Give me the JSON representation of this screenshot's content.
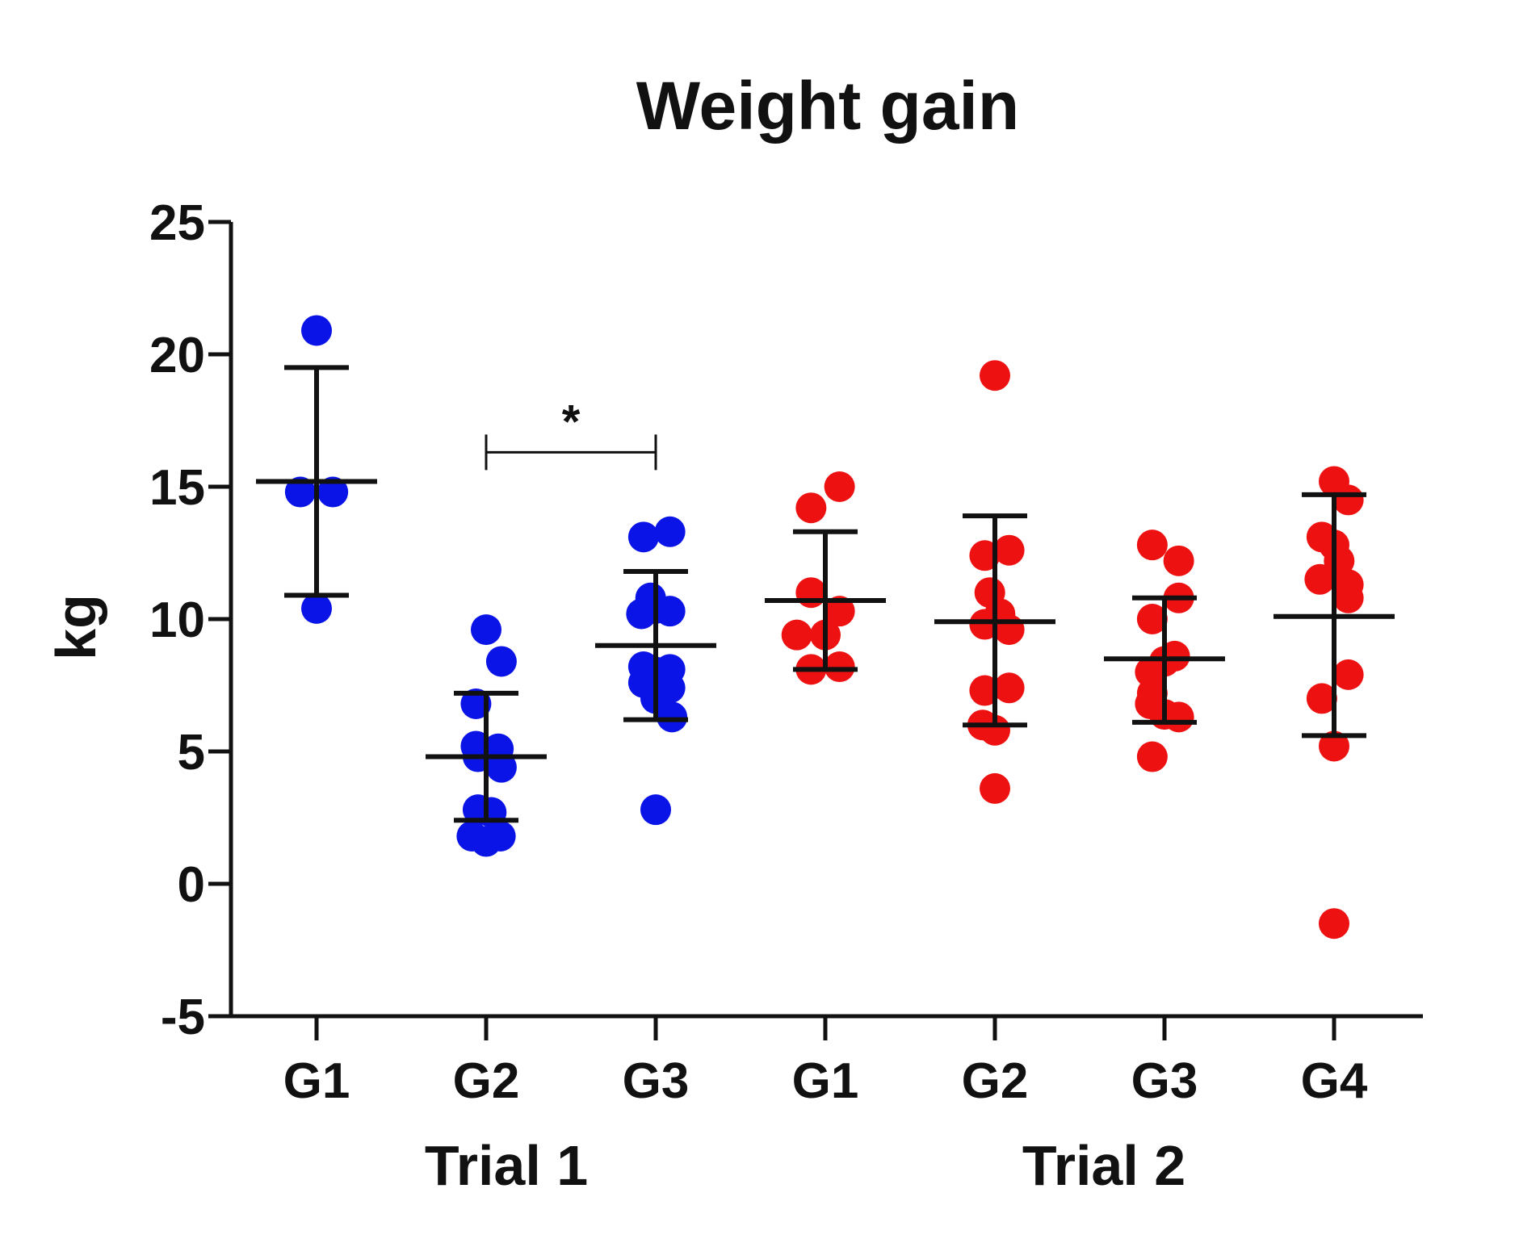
{
  "chart_data": {
    "type": "scatter",
    "title": "Weight gain",
    "ylabel": "kg",
    "xlabel": "",
    "ylim": [
      -5,
      25
    ],
    "yticks": [
      -5,
      0,
      5,
      10,
      15,
      20,
      25
    ],
    "grid": false,
    "legend": "none",
    "group_labels": [
      "Trial 1",
      "Trial 2"
    ],
    "categories": [
      "G1",
      "G2",
      "G3",
      "G1",
      "G2",
      "G3",
      "G4"
    ],
    "significance": {
      "from": 1,
      "to": 2,
      "label": "*",
      "y": 16.3
    },
    "series": [
      {
        "group": "Trial 1",
        "label": "G1",
        "color": "#0a14e6",
        "mean": 15.2,
        "sd_low": 10.9,
        "sd_high": 19.5,
        "points": [
          [
            0.0,
            20.9
          ],
          [
            -0.16,
            14.8
          ],
          [
            0.16,
            14.8
          ],
          [
            0.0,
            10.4
          ]
        ]
      },
      {
        "group": "Trial 1",
        "label": "G2",
        "color": "#0a14e6",
        "mean": 4.8,
        "sd_low": 2.4,
        "sd_high": 7.2,
        "points": [
          [
            0.0,
            9.6
          ],
          [
            0.15,
            8.4
          ],
          [
            -0.1,
            6.8
          ],
          [
            -0.1,
            5.2
          ],
          [
            0.12,
            5.1
          ],
          [
            -0.08,
            4.8
          ],
          [
            0.15,
            4.4
          ],
          [
            -0.08,
            2.8
          ],
          [
            0.05,
            2.7
          ],
          [
            -0.14,
            1.8
          ],
          [
            0.14,
            1.8
          ],
          [
            0.0,
            1.6
          ]
        ]
      },
      {
        "group": "Trial 1",
        "label": "G3",
        "color": "#0a14e6",
        "mean": 9.0,
        "sd_low": 6.2,
        "sd_high": 11.8,
        "points": [
          [
            -0.12,
            13.1
          ],
          [
            0.14,
            13.3
          ],
          [
            -0.05,
            10.8
          ],
          [
            -0.14,
            10.2
          ],
          [
            0.0,
            10.4
          ],
          [
            0.14,
            10.3
          ],
          [
            -0.12,
            8.2
          ],
          [
            0.0,
            8.0
          ],
          [
            0.14,
            8.1
          ],
          [
            -0.12,
            7.6
          ],
          [
            0.14,
            7.4
          ],
          [
            0.0,
            7.0
          ],
          [
            0.16,
            6.3
          ],
          [
            0.0,
            2.8
          ]
        ]
      },
      {
        "group": "Trial 2",
        "label": "G1",
        "color": "#ee1111",
        "mean": 10.7,
        "sd_low": 8.1,
        "sd_high": 13.3,
        "points": [
          [
            -0.14,
            14.2
          ],
          [
            0.14,
            15.0
          ],
          [
            -0.14,
            11.0
          ],
          [
            -0.28,
            9.4
          ],
          [
            0.14,
            10.3
          ],
          [
            0.0,
            9.4
          ],
          [
            -0.14,
            8.1
          ],
          [
            0.14,
            8.2
          ]
        ]
      },
      {
        "group": "Trial 2",
        "label": "G2",
        "color": "#ee1111",
        "mean": 9.9,
        "sd_low": 6.0,
        "sd_high": 13.9,
        "points": [
          [
            0.0,
            19.2
          ],
          [
            -0.1,
            12.4
          ],
          [
            0.14,
            12.6
          ],
          [
            -0.05,
            11.0
          ],
          [
            -0.1,
            9.8
          ],
          [
            0.05,
            10.2
          ],
          [
            0.14,
            9.6
          ],
          [
            -0.1,
            7.3
          ],
          [
            0.14,
            7.4
          ],
          [
            -0.12,
            6.0
          ],
          [
            0.0,
            5.8
          ],
          [
            0.0,
            3.6
          ]
        ]
      },
      {
        "group": "Trial 2",
        "label": "G3",
        "color": "#ee1111",
        "mean": 8.5,
        "sd_low": 6.1,
        "sd_high": 10.8,
        "points": [
          [
            -0.12,
            12.8
          ],
          [
            0.14,
            12.2
          ],
          [
            -0.12,
            10.0
          ],
          [
            0.14,
            10.8
          ],
          [
            -0.14,
            8.0
          ],
          [
            0.0,
            8.4
          ],
          [
            0.1,
            8.6
          ],
          [
            -0.14,
            6.8
          ],
          [
            0.0,
            6.4
          ],
          [
            0.14,
            6.3
          ],
          [
            -0.12,
            7.2
          ],
          [
            -0.12,
            4.8
          ]
        ]
      },
      {
        "group": "Trial 2",
        "label": "G4",
        "color": "#ee1111",
        "mean": 10.1,
        "sd_low": 5.6,
        "sd_high": 14.7,
        "points": [
          [
            0.0,
            15.2
          ],
          [
            0.14,
            14.5
          ],
          [
            -0.12,
            13.1
          ],
          [
            0.0,
            12.8
          ],
          [
            0.05,
            12.2
          ],
          [
            -0.14,
            11.5
          ],
          [
            0.14,
            11.3
          ],
          [
            0.14,
            10.8
          ],
          [
            -0.12,
            7.0
          ],
          [
            0.14,
            7.9
          ],
          [
            0.0,
            5.2
          ],
          [
            0.0,
            -1.5
          ]
        ]
      }
    ]
  }
}
